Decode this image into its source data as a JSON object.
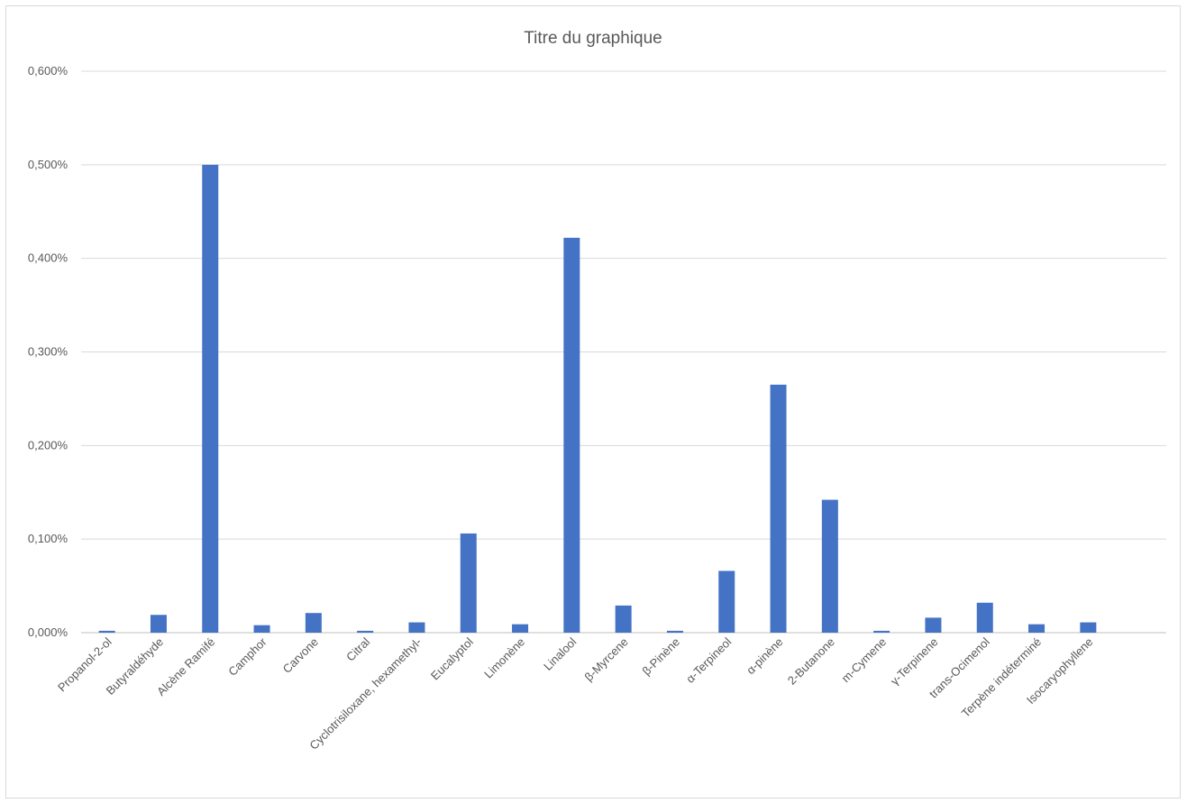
{
  "chart_data": {
    "type": "bar",
    "title": "Titre du graphique",
    "xlabel": "",
    "ylabel": "",
    "ylim": [
      0,
      0.6
    ],
    "yticks": [
      0,
      0.1,
      0.2,
      0.3,
      0.4,
      0.5,
      0.6
    ],
    "ytick_labels": [
      "0,000%",
      "0,100%",
      "0,200%",
      "0,300%",
      "0,400%",
      "0,500%",
      "0,600%"
    ],
    "grid": true,
    "legend": "none",
    "bar_color": "#4472c4",
    "categories": [
      "Propanol-2-ol",
      "Butyraldéhyde",
      "Alcène Ramifé",
      "Camphor",
      "Carvone",
      "Citral",
      "Cyclotrisiloxane, hexamethyl-",
      "Eucalyptol",
      "Limonène",
      "Linalool",
      "β-Myrcene",
      "β-Pinène",
      "α-Terpineol",
      "α-pinène",
      "2-Butanone",
      "m-Cymene",
      "γ-Terpinene",
      "trans-Ocimenol",
      "Terpène indéterminé",
      "Isocaryophyllene"
    ],
    "values": [
      0.002,
      0.019,
      0.5,
      0.008,
      0.021,
      0.002,
      0.011,
      0.106,
      0.009,
      0.422,
      0.029,
      0.002,
      0.066,
      0.265,
      0.142,
      0.002,
      0.016,
      0.032,
      0.009,
      0.011
    ]
  }
}
